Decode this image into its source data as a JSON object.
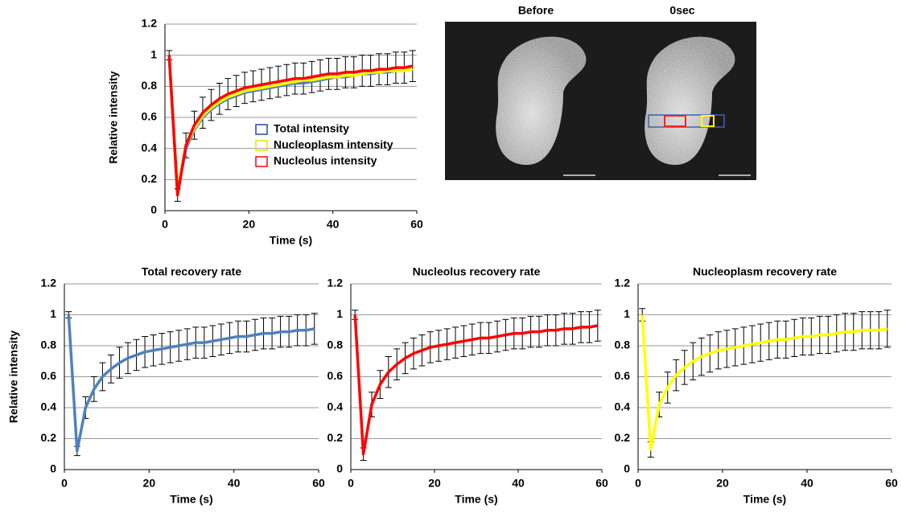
{
  "chart_data": [
    {
      "type": "line",
      "ylabel": "Relative intensity",
      "xlabel": "Time (s)",
      "xlim": [
        0,
        60
      ],
      "xticks": [
        0,
        20,
        40,
        60
      ],
      "ylim": [
        0,
        1.2
      ],
      "yticks": [
        0,
        0.2,
        0.4,
        0.6,
        0.8,
        1,
        1.2
      ],
      "grid": true,
      "legend": "center",
      "x": [
        1,
        3,
        5,
        7,
        9,
        11,
        13,
        15,
        17,
        19,
        21,
        23,
        25,
        27,
        29,
        31,
        33,
        35,
        37,
        39,
        41,
        43,
        45,
        47,
        49,
        51,
        53,
        55,
        57,
        59
      ],
      "series": [
        {
          "name": "Total intensity",
          "color": "#4f81bd",
          "legend_color": "#1f4e9a",
          "values": [
            1,
            0.12,
            0.4,
            0.52,
            0.6,
            0.65,
            0.69,
            0.72,
            0.74,
            0.76,
            0.77,
            0.78,
            0.79,
            0.8,
            0.81,
            0.82,
            0.82,
            0.83,
            0.84,
            0.85,
            0.86,
            0.86,
            0.87,
            0.88,
            0.88,
            0.89,
            0.89,
            0.9,
            0.9,
            0.91
          ]
        },
        {
          "name": "Nucleoplasm intensity",
          "color": "#ffff00",
          "legend_color": "#e6e600",
          "values": [
            1,
            0.13,
            0.42,
            0.53,
            0.61,
            0.66,
            0.7,
            0.73,
            0.75,
            0.77,
            0.78,
            0.79,
            0.8,
            0.81,
            0.82,
            0.83,
            0.84,
            0.84,
            0.85,
            0.86,
            0.86,
            0.87,
            0.87,
            0.88,
            0.89,
            0.89,
            0.9,
            0.9,
            0.9,
            0.91
          ]
        },
        {
          "name": "Nucleolus intensity",
          "color": "#ff0000",
          "legend_color": "#ff0000",
          "values": [
            1,
            0.1,
            0.42,
            0.55,
            0.63,
            0.68,
            0.72,
            0.75,
            0.77,
            0.79,
            0.8,
            0.81,
            0.82,
            0.83,
            0.84,
            0.85,
            0.85,
            0.86,
            0.87,
            0.88,
            0.88,
            0.89,
            0.89,
            0.9,
            0.9,
            0.91,
            0.91,
            0.92,
            0.92,
            0.93
          ],
          "errors": [
            0.03,
            0.04,
            0.08,
            0.09,
            0.1,
            0.1,
            0.1,
            0.1,
            0.1,
            0.1,
            0.1,
            0.1,
            0.1,
            0.1,
            0.1,
            0.1,
            0.1,
            0.1,
            0.1,
            0.1,
            0.1,
            0.1,
            0.1,
            0.1,
            0.1,
            0.1,
            0.1,
            0.1,
            0.1,
            0.1
          ]
        }
      ]
    },
    {
      "type": "line",
      "title": "Total recovery rate",
      "ylabel": "Relative intensity",
      "xlabel": "Time (s)",
      "xlim": [
        0,
        60
      ],
      "xticks": [
        0,
        20,
        40,
        60
      ],
      "ylim": [
        0,
        1.2
      ],
      "yticks": [
        0,
        0.2,
        0.4,
        0.6,
        0.8,
        1,
        1.2
      ],
      "grid": true,
      "x": [
        1,
        3,
        5,
        7,
        9,
        11,
        13,
        15,
        17,
        19,
        21,
        23,
        25,
        27,
        29,
        31,
        33,
        35,
        37,
        39,
        41,
        43,
        45,
        47,
        49,
        51,
        53,
        55,
        57,
        59
      ],
      "series": [
        {
          "color": "#4f81bd",
          "values": [
            1,
            0.12,
            0.4,
            0.52,
            0.6,
            0.65,
            0.69,
            0.72,
            0.74,
            0.76,
            0.77,
            0.78,
            0.79,
            0.8,
            0.81,
            0.82,
            0.82,
            0.83,
            0.84,
            0.85,
            0.86,
            0.86,
            0.87,
            0.88,
            0.88,
            0.89,
            0.89,
            0.9,
            0.9,
            0.91
          ],
          "errors": [
            0.02,
            0.03,
            0.07,
            0.08,
            0.09,
            0.09,
            0.1,
            0.1,
            0.1,
            0.1,
            0.1,
            0.1,
            0.1,
            0.1,
            0.1,
            0.1,
            0.1,
            0.1,
            0.1,
            0.1,
            0.1,
            0.1,
            0.1,
            0.1,
            0.1,
            0.1,
            0.1,
            0.1,
            0.1,
            0.1
          ]
        }
      ]
    },
    {
      "type": "line",
      "title": "Nucleolus recovery rate",
      "xlabel": "Time (s)",
      "xlim": [
        0,
        60
      ],
      "xticks": [
        0,
        20,
        40,
        60
      ],
      "ylim": [
        0,
        1.2
      ],
      "yticks": [
        0,
        0.2,
        0.4,
        0.6,
        0.8,
        1,
        1.2
      ],
      "grid": true,
      "x": [
        1,
        3,
        5,
        7,
        9,
        11,
        13,
        15,
        17,
        19,
        21,
        23,
        25,
        27,
        29,
        31,
        33,
        35,
        37,
        39,
        41,
        43,
        45,
        47,
        49,
        51,
        53,
        55,
        57,
        59
      ],
      "series": [
        {
          "color": "#ff0000",
          "values": [
            1,
            0.1,
            0.42,
            0.55,
            0.63,
            0.68,
            0.72,
            0.75,
            0.77,
            0.79,
            0.8,
            0.81,
            0.82,
            0.83,
            0.84,
            0.85,
            0.85,
            0.86,
            0.87,
            0.88,
            0.88,
            0.89,
            0.89,
            0.9,
            0.9,
            0.91,
            0.91,
            0.92,
            0.92,
            0.93
          ],
          "errors": [
            0.03,
            0.04,
            0.08,
            0.09,
            0.1,
            0.1,
            0.1,
            0.1,
            0.1,
            0.1,
            0.1,
            0.1,
            0.1,
            0.1,
            0.1,
            0.1,
            0.1,
            0.1,
            0.1,
            0.1,
            0.1,
            0.1,
            0.1,
            0.1,
            0.1,
            0.1,
            0.1,
            0.1,
            0.1,
            0.1
          ]
        }
      ]
    },
    {
      "type": "line",
      "title": "Nucleoplasm recovery rate",
      "xlabel": "Time (s)",
      "xlim": [
        0,
        60
      ],
      "xticks": [
        0,
        20,
        40,
        60
      ],
      "ylim": [
        0,
        1.2
      ],
      "yticks": [
        0,
        0.2,
        0.4,
        0.6,
        0.8,
        1,
        1.2
      ],
      "grid": true,
      "x": [
        1,
        3,
        5,
        7,
        9,
        11,
        13,
        15,
        17,
        19,
        21,
        23,
        25,
        27,
        29,
        31,
        33,
        35,
        37,
        39,
        41,
        43,
        45,
        47,
        49,
        51,
        53,
        55,
        57,
        59
      ],
      "series": [
        {
          "color": "#ffff00",
          "values": [
            1,
            0.13,
            0.42,
            0.53,
            0.61,
            0.66,
            0.7,
            0.73,
            0.75,
            0.77,
            0.78,
            0.79,
            0.8,
            0.81,
            0.82,
            0.83,
            0.84,
            0.84,
            0.85,
            0.86,
            0.86,
            0.87,
            0.87,
            0.88,
            0.89,
            0.89,
            0.9,
            0.9,
            0.9,
            0.91
          ],
          "errors": [
            0.04,
            0.05,
            0.08,
            0.1,
            0.1,
            0.11,
            0.12,
            0.12,
            0.12,
            0.12,
            0.12,
            0.12,
            0.12,
            0.12,
            0.12,
            0.12,
            0.12,
            0.12,
            0.12,
            0.12,
            0.12,
            0.12,
            0.12,
            0.12,
            0.12,
            0.12,
            0.12,
            0.12,
            0.12,
            0.12
          ]
        }
      ]
    }
  ],
  "image_panel": {
    "labels": [
      "Before",
      "0sec"
    ]
  }
}
